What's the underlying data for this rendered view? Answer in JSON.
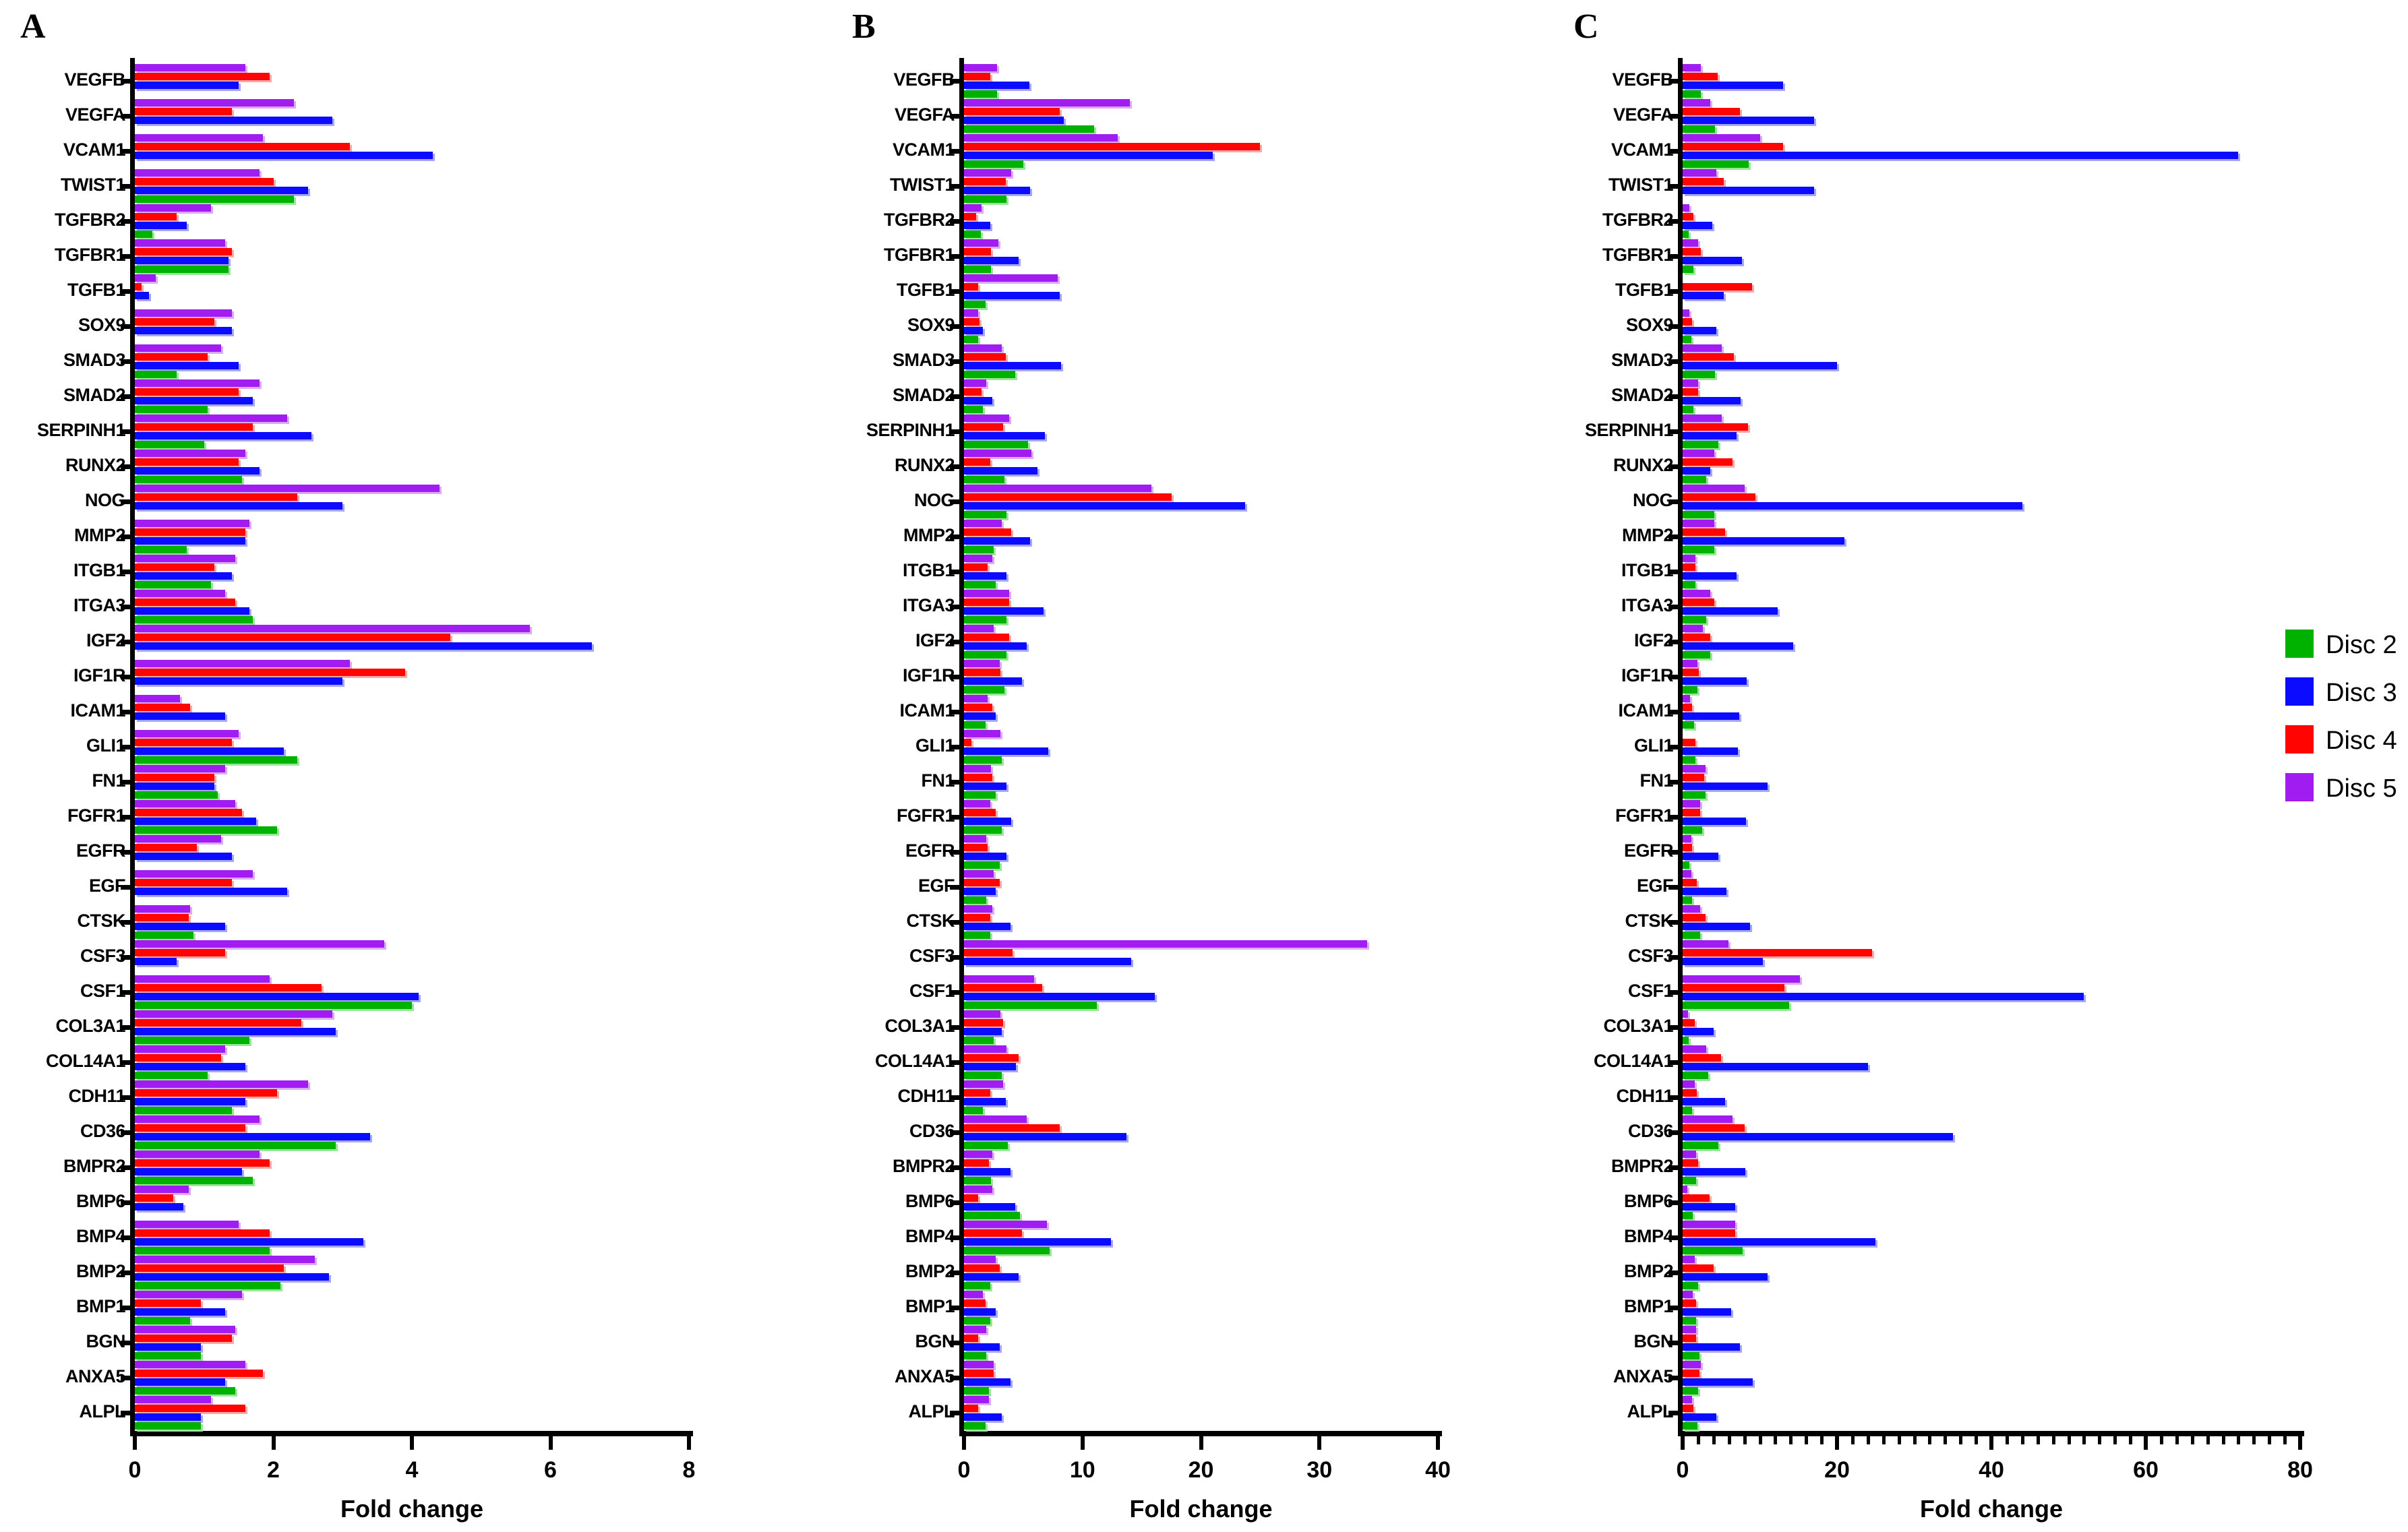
{
  "figure_labels": {
    "panel_a": "A",
    "panel_b": "B",
    "panel_c": "C"
  },
  "xlabel": "Fold change",
  "legend": {
    "position": "right-middle",
    "items": [
      {
        "label": "Disc 2",
        "color": "#00B200",
        "tint": "#99E699"
      },
      {
        "label": "Disc 3",
        "color": "#0B0BFF",
        "tint": "#A6A6FF"
      },
      {
        "label": "Disc 4",
        "color": "#FF0400",
        "tint": "#FFA6A6"
      },
      {
        "label": "Disc 5",
        "color": "#A11CF0",
        "tint": "#DCA9F7"
      }
    ]
  },
  "genes": [
    "VEGFB",
    "VEGFA",
    "VCAM1",
    "TWIST1",
    "TGFBR2",
    "TGFBR1",
    "TGFB1",
    "SOX9",
    "SMAD3",
    "SMAD2",
    "SERPINH1",
    "RUNX2",
    "NOG",
    "MMP2",
    "ITGB1",
    "ITGA3",
    "IGF2",
    "IGF1R",
    "ICAM1",
    "GLI1",
    "FN1",
    "FGFR1",
    "EGFR",
    "EGF",
    "CTSK",
    "CSF3",
    "CSF1",
    "COL3A1",
    "COL14A1",
    "CDH11",
    "CD36",
    "BMPR2",
    "BMP6",
    "BMP4",
    "BMP2",
    "BMP1",
    "BGN",
    "ANXA5",
    "ALPL"
  ],
  "chart_data": [
    {
      "type": "bar",
      "panel": "A",
      "orientation": "horizontal",
      "xlabel": "Fold change",
      "xlim": [
        0,
        8
      ],
      "xticks": [
        0,
        2,
        4,
        6,
        8
      ],
      "minor_tick_step": null,
      "grid": false,
      "categories_from": "genes",
      "bar_order_top_to_bottom": [
        "Disc 5",
        "Disc 4",
        "Disc 3",
        "Disc 2"
      ],
      "series": [
        {
          "name": "Disc 2",
          "values": [
            0,
            0,
            0,
            2.3,
            0.25,
            1.35,
            0,
            0,
            0.6,
            1.05,
            1.0,
            1.55,
            0,
            0.75,
            1.1,
            1.7,
            0,
            0,
            0,
            2.35,
            1.2,
            2.05,
            0,
            0,
            0.85,
            0,
            4.0,
            1.65,
            1.05,
            1.4,
            2.9,
            1.7,
            0,
            1.95,
            2.1,
            0.8,
            0.95,
            1.45,
            0.95
          ]
        },
        {
          "name": "Disc 3",
          "values": [
            1.5,
            2.85,
            4.3,
            2.5,
            0.75,
            1.35,
            0.2,
            1.4,
            1.5,
            1.7,
            2.55,
            1.8,
            3.0,
            1.6,
            1.4,
            1.65,
            6.6,
            3.0,
            1.3,
            2.15,
            1.15,
            1.75,
            1.4,
            2.2,
            1.3,
            0.6,
            4.1,
            2.9,
            1.6,
            1.6,
            3.4,
            1.55,
            0.7,
            3.3,
            2.8,
            1.3,
            0.95,
            1.3,
            0.95
          ]
        },
        {
          "name": "Disc 4",
          "values": [
            1.95,
            1.4,
            3.1,
            2.0,
            0.6,
            1.4,
            0.1,
            1.15,
            1.05,
            1.5,
            1.7,
            1.5,
            2.35,
            1.6,
            1.15,
            1.45,
            4.55,
            3.9,
            0.8,
            1.4,
            1.15,
            1.55,
            0.9,
            1.4,
            0.78,
            1.3,
            2.7,
            2.4,
            1.25,
            2.05,
            1.6,
            1.95,
            0.55,
            1.95,
            2.15,
            0.95,
            1.4,
            1.85,
            1.6
          ]
        },
        {
          "name": "Disc 5",
          "values": [
            1.6,
            2.3,
            1.85,
            1.8,
            1.1,
            1.3,
            0.3,
            1.4,
            1.25,
            1.8,
            2.2,
            1.6,
            4.4,
            1.65,
            1.45,
            1.3,
            5.7,
            3.1,
            0.65,
            1.5,
            1.3,
            1.45,
            1.25,
            1.7,
            0.8,
            3.6,
            1.95,
            2.85,
            1.3,
            2.5,
            1.8,
            1.8,
            0.78,
            1.5,
            2.6,
            1.55,
            1.45,
            1.6,
            1.1
          ]
        }
      ]
    },
    {
      "type": "bar",
      "panel": "B",
      "orientation": "horizontal",
      "xlabel": "Fold change",
      "xlim": [
        0,
        40
      ],
      "xticks": [
        0,
        10,
        20,
        30,
        40
      ],
      "minor_tick_step": null,
      "grid": false,
      "categories_from": "genes",
      "bar_order_top_to_bottom": [
        "Disc 5",
        "Disc 4",
        "Disc 3",
        "Disc 2"
      ],
      "series": [
        {
          "name": "Disc 2",
          "values": [
            2.8,
            11,
            5,
            3.6,
            1.4,
            2.3,
            1.8,
            1.2,
            4.3,
            1.6,
            5.4,
            3.4,
            3.6,
            2.5,
            2.7,
            3.6,
            3.6,
            3.4,
            1.8,
            3.2,
            2.7,
            3.2,
            3.0,
            1.9,
            2.2,
            0,
            11.2,
            2.5,
            3.2,
            1.6,
            3.7,
            2.3,
            4.7,
            7.2,
            2.2,
            2.2,
            1.9,
            2.1,
            1.8
          ]
        },
        {
          "name": "Disc 3",
          "values": [
            5.5,
            8.4,
            21,
            5.6,
            2.2,
            4.6,
            8.1,
            1.6,
            8.2,
            2.4,
            6.8,
            6.2,
            23.7,
            5.6,
            3.6,
            6.7,
            5.3,
            4.9,
            2.7,
            7.1,
            3.6,
            4.0,
            3.6,
            2.7,
            3.9,
            14.1,
            16.1,
            3.2,
            4.4,
            3.5,
            13.7,
            3.9,
            4.3,
            12.4,
            4.6,
            2.7,
            3.0,
            3.9,
            3.2
          ]
        },
        {
          "name": "Disc 4",
          "values": [
            2.2,
            8.1,
            25,
            3.5,
            1.0,
            2.3,
            1.2,
            1.3,
            3.5,
            1.5,
            3.3,
            2.2,
            17.5,
            4.0,
            2.0,
            3.8,
            3.8,
            3.1,
            2.4,
            0.6,
            2.4,
            2.7,
            2.0,
            3.0,
            2.2,
            4.1,
            6.6,
            3.3,
            4.6,
            2.2,
            8.1,
            2.1,
            1.2,
            4.9,
            3.0,
            1.8,
            1.2,
            2.5,
            1.2
          ]
        },
        {
          "name": "Disc 5",
          "values": [
            2.8,
            14,
            13,
            4.0,
            1.5,
            2.9,
            7.9,
            1.2,
            3.2,
            1.9,
            3.8,
            5.7,
            15.8,
            3.2,
            2.4,
            3.8,
            2.5,
            3.0,
            2.0,
            3.1,
            2.3,
            2.2,
            1.9,
            2.5,
            2.4,
            34,
            5.9,
            3.1,
            3.6,
            3.3,
            5.3,
            2.4,
            2.4,
            7.0,
            2.7,
            1.6,
            1.9,
            2.5,
            2.1
          ]
        }
      ]
    },
    {
      "type": "bar",
      "panel": "C",
      "orientation": "horizontal",
      "xlabel": "Fold change",
      "xlim": [
        0,
        80
      ],
      "xticks": [
        0,
        20,
        40,
        60,
        80
      ],
      "minor_tick_step": 2,
      "grid": false,
      "categories_from": "genes",
      "bar_order_top_to_bottom": [
        "Disc 5",
        "Disc 4",
        "Disc 3",
        "Disc 2"
      ],
      "series": [
        {
          "name": "Disc 2",
          "values": [
            2.4,
            4.2,
            8.6,
            0,
            0.8,
            1.4,
            0,
            1.1,
            4.2,
            1.4,
            4.6,
            3.1,
            4.1,
            4.1,
            1.7,
            3.1,
            3.6,
            1.9,
            1.5,
            1.7,
            3.0,
            2.5,
            0.9,
            1.2,
            2.3,
            0,
            13.8,
            0.8,
            3.3,
            1.2,
            4.6,
            1.75,
            1.3,
            7.8,
            2.0,
            1.75,
            2.2,
            2.0,
            1.9
          ]
        },
        {
          "name": "Disc 3",
          "values": [
            13,
            17,
            72,
            17,
            3.8,
            7.7,
            5.3,
            4.4,
            20,
            7.5,
            7.0,
            3.6,
            44,
            21,
            7.0,
            12.3,
            14.3,
            8.3,
            7.3,
            7.2,
            11,
            8.2,
            4.6,
            5.7,
            8.7,
            10.4,
            52,
            4.0,
            24,
            5.5,
            35,
            8.1,
            6.8,
            25,
            11,
            6.3,
            7.4,
            9.1,
            4.4
          ]
        },
        {
          "name": "Disc 4",
          "values": [
            4.5,
            7.4,
            13,
            5.3,
            1.4,
            2.4,
            9.0,
            1.2,
            6.6,
            2.0,
            8.5,
            6.5,
            9.4,
            5.5,
            1.7,
            4.1,
            3.6,
            2.1,
            1.2,
            1.7,
            2.8,
            2.3,
            1.2,
            1.8,
            3.0,
            24.5,
            13.2,
            1.6,
            5.0,
            1.8,
            8.0,
            2.0,
            3.5,
            6.8,
            4.0,
            1.75,
            1.75,
            2.2,
            1.4
          ]
        },
        {
          "name": "Disc 5",
          "values": [
            2.4,
            3.6,
            10,
            4.4,
            0.9,
            2.0,
            0,
            0.9,
            5.1,
            2.0,
            5.1,
            4.1,
            8.0,
            4.1,
            1.7,
            3.6,
            2.6,
            1.9,
            1.0,
            0,
            3.0,
            2.3,
            1.1,
            1.1,
            2.3,
            5.9,
            15.2,
            0.7,
            3.1,
            1.6,
            6.5,
            1.75,
            0.6,
            6.8,
            1.6,
            1.3,
            1.75,
            2.4,
            1.2
          ]
        }
      ]
    }
  ]
}
